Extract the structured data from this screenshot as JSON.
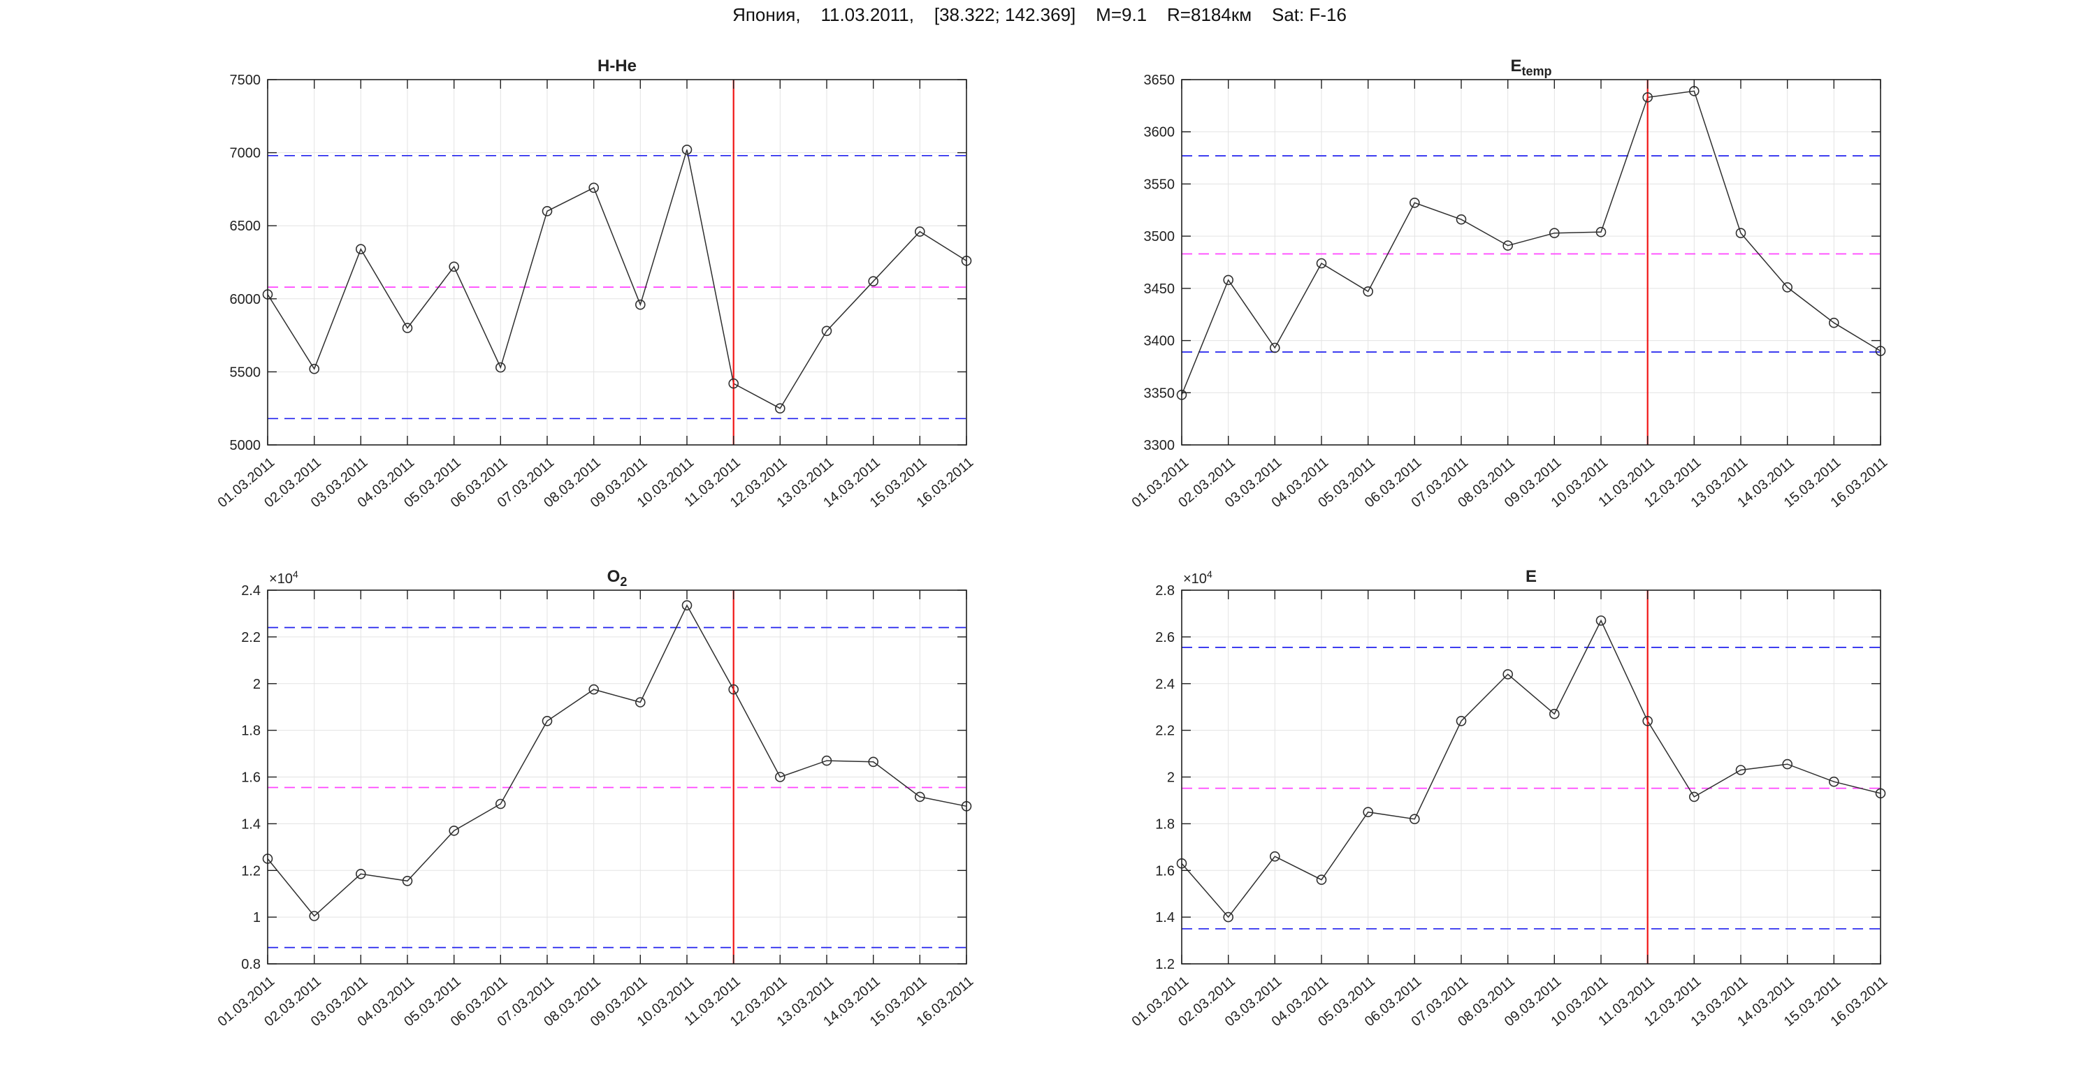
{
  "suptitle": "Япония,    11.03.2011,    [38.322; 142.369]    M=9.1    R=8184км    Sat: F-16",
  "event_date": "11.03.2011",
  "colors": {
    "series": "#2f2f2f",
    "bound_line": "#2222ee",
    "mean_line": "#ff44ff",
    "event_line": "#f01414",
    "grid": "#e3e3e3",
    "axis": "#1f1f1f",
    "text": "#222222"
  },
  "chart_data": [
    {
      "id": "h-he",
      "type": "line",
      "title": "H-He",
      "title_sub": "",
      "categories": [
        "01.03.2011",
        "02.03.2011",
        "03.03.2011",
        "04.03.2011",
        "05.03.2011",
        "06.03.2011",
        "07.03.2011",
        "08.03.2011",
        "09.03.2011",
        "10.03.2011",
        "11.03.2011",
        "12.03.2011",
        "13.03.2011",
        "14.03.2011",
        "15.03.2011",
        "16.03.2011"
      ],
      "values": [
        6030,
        5520,
        6340,
        5800,
        6220,
        5530,
        6600,
        6760,
        5960,
        7020,
        5420,
        5250,
        5780,
        6120,
        6460,
        6260
      ],
      "ylim": [
        5000,
        7500
      ],
      "yticks": [
        5000,
        5500,
        6000,
        6500,
        7000,
        7500
      ],
      "ytick_labels": [
        "5000",
        "5500",
        "6000",
        "6500",
        "7000",
        "7500"
      ],
      "upper_bound": 6980,
      "mean_line": 6080,
      "lower_bound": 5180,
      "event_x": "11.03.2011",
      "y_exp_label": "",
      "y_exp_sup": "",
      "grid": true,
      "legend": "none"
    },
    {
      "id": "e-temp",
      "type": "line",
      "title": "E",
      "title_sub": "temp",
      "categories": [
        "01.03.2011",
        "02.03.2011",
        "03.03.2011",
        "04.03.2011",
        "05.03.2011",
        "06.03.2011",
        "07.03.2011",
        "08.03.2011",
        "09.03.2011",
        "10.03.2011",
        "11.03.2011",
        "12.03.2011",
        "13.03.2011",
        "14.03.2011",
        "15.03.2011",
        "16.03.2011"
      ],
      "values": [
        3348,
        3458,
        3393,
        3474,
        3447,
        3532,
        3516,
        3491,
        3503,
        3504,
        3633,
        3639,
        3503,
        3451,
        3417,
        3390
      ],
      "ylim": [
        3300,
        3650
      ],
      "yticks": [
        3300,
        3350,
        3400,
        3450,
        3500,
        3550,
        3600,
        3650
      ],
      "ytick_labels": [
        "3300",
        "3350",
        "3400",
        "3450",
        "3500",
        "3550",
        "3600",
        "3650"
      ],
      "upper_bound": 3577,
      "mean_line": 3483,
      "lower_bound": 3389,
      "event_x": "11.03.2011",
      "y_exp_label": "",
      "y_exp_sup": "",
      "grid": true,
      "legend": "none"
    },
    {
      "id": "o2",
      "type": "line",
      "title": "O",
      "title_sub": "2",
      "categories": [
        "01.03.2011",
        "02.03.2011",
        "03.03.2011",
        "04.03.2011",
        "05.03.2011",
        "06.03.2011",
        "07.03.2011",
        "08.03.2011",
        "09.03.2011",
        "10.03.2011",
        "11.03.2011",
        "12.03.2011",
        "13.03.2011",
        "14.03.2011",
        "15.03.2011",
        "16.03.2011"
      ],
      "values": [
        12500,
        10050,
        11850,
        11550,
        13700,
        14850,
        18400,
        19750,
        19200,
        23350,
        19750,
        16000,
        16700,
        16650,
        15150,
        14750
      ],
      "ylim": [
        8000,
        24000
      ],
      "yticks": [
        8000,
        10000,
        12000,
        14000,
        16000,
        18000,
        20000,
        22000,
        24000
      ],
      "ytick_labels": [
        "0.8",
        "1",
        "1.2",
        "1.4",
        "1.6",
        "1.8",
        "2",
        "2.2",
        "2.4"
      ],
      "upper_bound": 22400,
      "mean_line": 15550,
      "lower_bound": 8700,
      "event_x": "11.03.2011",
      "y_exp_label": "×10",
      "y_exp_sup": "4",
      "grid": true,
      "legend": "none"
    },
    {
      "id": "e",
      "type": "line",
      "title": "E",
      "title_sub": "",
      "categories": [
        "01.03.2011",
        "02.03.2011",
        "03.03.2011",
        "04.03.2011",
        "05.03.2011",
        "06.03.2011",
        "07.03.2011",
        "08.03.2011",
        "09.03.2011",
        "10.03.2011",
        "11.03.2011",
        "12.03.2011",
        "13.03.2011",
        "14.03.2011",
        "15.03.2011",
        "16.03.2011"
      ],
      "values": [
        16300,
        14000,
        16600,
        15600,
        18500,
        18200,
        22400,
        24400,
        22700,
        26700,
        22400,
        19150,
        20300,
        20550,
        19800,
        19300
      ],
      "ylim": [
        12000,
        28000
      ],
      "yticks": [
        12000,
        14000,
        16000,
        18000,
        20000,
        22000,
        24000,
        26000,
        28000
      ],
      "ytick_labels": [
        "1.2",
        "1.4",
        "1.6",
        "1.8",
        "2",
        "2.2",
        "2.4",
        "2.6",
        "2.8"
      ],
      "upper_bound": 25550,
      "mean_line": 19520,
      "lower_bound": 13500,
      "event_x": "11.03.2011",
      "y_exp_label": "×10",
      "y_exp_sup": "4",
      "grid": true,
      "legend": "none"
    }
  ]
}
